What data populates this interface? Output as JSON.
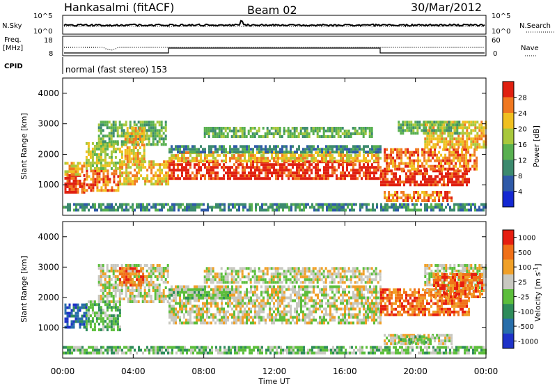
{
  "header": {
    "station": "Hankasalmi (fitACF)",
    "beam": "Beam 02",
    "date": "30/Mar/2012"
  },
  "noise_panel": {
    "left_label": "N.Sky",
    "right_label": "N.Search",
    "left_ticks": [
      "10^5",
      "10^0"
    ],
    "right_ticks": [
      "10^5",
      "10^0"
    ]
  },
  "freq_panel": {
    "left_label_line1": "Freq.",
    "left_label_line2": "[MHz]",
    "left_ticks": [
      "18",
      "8"
    ],
    "right_label": "Nave",
    "right_ticks": [
      "60",
      "0"
    ]
  },
  "cpid_panel": {
    "label": "CPID",
    "mode_text": "normal (fast stereo) 153"
  },
  "chart_data": [
    {
      "type": "heatmap",
      "name": "power",
      "ylabel": "Slant Range [km]",
      "ylim": [
        0,
        4500
      ],
      "yticks": [
        "1000",
        "2000",
        "3000",
        "4000"
      ],
      "xlim_hours": [
        0,
        24
      ],
      "xticks": [
        "00:00",
        "04:00",
        "08:00",
        "12:00",
        "16:00",
        "20:00",
        "00:00"
      ],
      "colorbar_label": "Power [dB]",
      "colorbar_ticks": [
        "4",
        "8",
        "12",
        "16",
        "20",
        "24",
        "28"
      ],
      "colorbar_colors": [
        "#1428d2",
        "#2f5aa8",
        "#3c8a6e",
        "#58b050",
        "#a8c83c",
        "#f0c020",
        "#f07820",
        "#e02010"
      ],
      "regions": [
        {
          "t0": 0.1,
          "t1": 1.2,
          "r0": 750,
          "r1": 1350,
          "level": 7
        },
        {
          "t0": 0.1,
          "t1": 1.2,
          "r0": 1350,
          "r1": 1750,
          "level": 5
        },
        {
          "t0": 1.2,
          "t1": 3.2,
          "r0": 800,
          "r1": 1500,
          "level": 6
        },
        {
          "t0": 1.3,
          "t1": 3.4,
          "r0": 1500,
          "r1": 2400,
          "level": 4
        },
        {
          "t0": 2.0,
          "t1": 5.8,
          "r0": 2300,
          "r1": 3100,
          "level": 3
        },
        {
          "t0": 3.2,
          "t1": 6.0,
          "r0": 1000,
          "r1": 1800,
          "level": 5
        },
        {
          "t0": 3.5,
          "t1": 4.6,
          "r0": 1800,
          "r1": 2900,
          "level": 5
        },
        {
          "t0": 6.0,
          "t1": 18.0,
          "r0": 1200,
          "r1": 1800,
          "level": 7
        },
        {
          "t0": 6.0,
          "t1": 18.0,
          "r0": 1800,
          "r1": 2100,
          "level": 5
        },
        {
          "t0": 6.0,
          "t1": 18.0,
          "r0": 2100,
          "r1": 2300,
          "level": 2
        },
        {
          "t0": 8.0,
          "t1": 17.5,
          "r0": 2600,
          "r1": 2900,
          "level": 3
        },
        {
          "t0": 18.0,
          "t1": 23.0,
          "r0": 1000,
          "r1": 1500,
          "level": 7
        },
        {
          "t0": 18.2,
          "t1": 23.5,
          "r0": 1500,
          "r1": 2200,
          "level": 6
        },
        {
          "t0": 20.5,
          "t1": 24.0,
          "r0": 2200,
          "r1": 3100,
          "level": 5
        },
        {
          "t0": 19.0,
          "t1": 22.5,
          "r0": 2700,
          "r1": 3100,
          "level": 3
        },
        {
          "t0": 18.2,
          "t1": 22.0,
          "r0": 500,
          "r1": 800,
          "level": 6
        },
        {
          "t0": 0.0,
          "t1": 24.0,
          "r0": 150,
          "r1": 400,
          "level": 2
        }
      ]
    },
    {
      "type": "heatmap",
      "name": "velocity",
      "ylabel": "Slant Range [km]",
      "ylim": [
        0,
        4500
      ],
      "yticks": [
        "1000",
        "2000",
        "3000",
        "4000"
      ],
      "xlabel": "Time UT",
      "xlim_hours": [
        0,
        24
      ],
      "xticks": [
        "00:00",
        "04:00",
        "08:00",
        "12:00",
        "16:00",
        "20:00",
        "00:00"
      ],
      "colorbar_label": "Velocity [m s^-1]",
      "colorbar_ticks": [
        "1000",
        "500",
        "100",
        "25",
        "-25",
        "-100",
        "-500",
        "-1000"
      ],
      "colorbar_colors": [
        "#1e32c8",
        "#286eaa",
        "#2e8c5a",
        "#5cbe3c",
        "#c8c8c0",
        "#f0a028",
        "#f07018",
        "#e61e10"
      ],
      "regions": [
        {
          "t0": 0.1,
          "t1": 1.3,
          "r0": 1000,
          "r1": 1800,
          "level": 1
        },
        {
          "t0": 1.3,
          "t1": 3.2,
          "r0": 900,
          "r1": 1900,
          "level": 3
        },
        {
          "t0": 2.0,
          "t1": 6.0,
          "r0": 1900,
          "r1": 3100,
          "level": 4
        },
        {
          "t0": 3.2,
          "t1": 4.6,
          "r0": 2400,
          "r1": 3000,
          "level": 6
        },
        {
          "t0": 6.0,
          "t1": 18.0,
          "r0": 1200,
          "r1": 2400,
          "level": 4
        },
        {
          "t0": 6.0,
          "t1": 9.5,
          "r0": 2000,
          "r1": 2300,
          "level": 3
        },
        {
          "t0": 8.0,
          "t1": 18.0,
          "r0": 2500,
          "r1": 3000,
          "level": 4
        },
        {
          "t0": 18.0,
          "t1": 23.0,
          "r0": 1400,
          "r1": 2300,
          "level": 6
        },
        {
          "t0": 20.5,
          "t1": 24.0,
          "r0": 2200,
          "r1": 3100,
          "level": 4
        },
        {
          "t0": 21.0,
          "t1": 23.8,
          "r0": 2000,
          "r1": 2800,
          "level": 6
        },
        {
          "t0": 18.2,
          "t1": 22.0,
          "r0": 500,
          "r1": 800,
          "level": 4
        },
        {
          "t0": 19.0,
          "t1": 21.0,
          "r0": 550,
          "r1": 750,
          "level": 3
        },
        {
          "t0": 0.0,
          "t1": 24.0,
          "r0": 150,
          "r1": 400,
          "level": 3
        }
      ]
    }
  ]
}
